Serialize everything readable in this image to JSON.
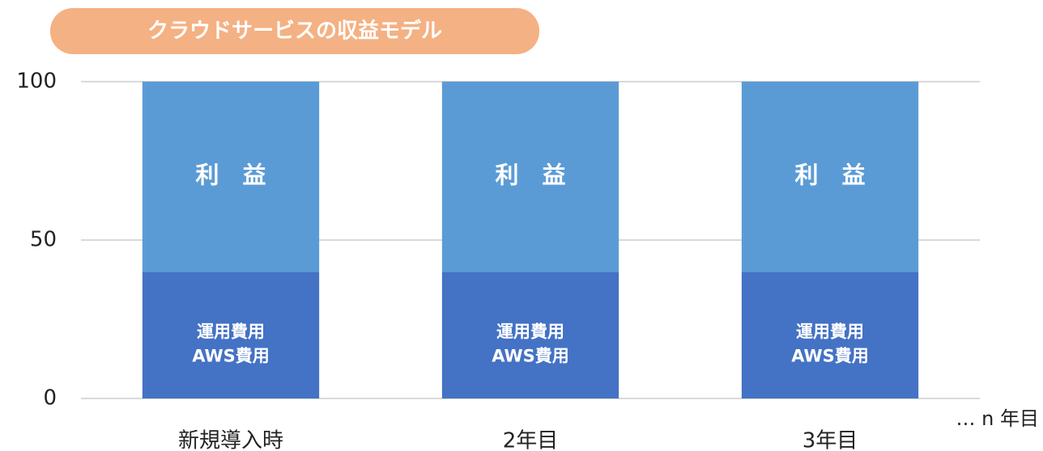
{
  "chart_data": {
    "type": "stacked_bar",
    "title": "クラウドサービスの収益モデル",
    "categories": [
      "新規導入時",
      "2年目",
      "3年目"
    ],
    "series": [
      {
        "name": "運用費用\nAWS費用",
        "color": "#4472c4",
        "values": [
          40,
          40,
          40
        ]
      },
      {
        "name": "利　益",
        "color": "#5b9bd5",
        "values": [
          60,
          60,
          60
        ]
      }
    ],
    "ylim": [
      0,
      100
    ],
    "yticks": [
      0,
      50,
      100
    ],
    "grid": true,
    "annotation": "… n 年目"
  }
}
